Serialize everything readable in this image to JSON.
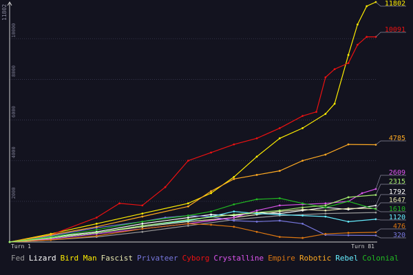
{
  "chart_data": {
    "type": "line",
    "title": "",
    "xlabel": "",
    "ylabel": "",
    "y_max_label": "11802",
    "xlim": [
      1,
      81
    ],
    "ylim": [
      0,
      11802
    ],
    "y_ticks": [
      2000,
      4000,
      6000,
      8000,
      10000
    ],
    "x_tick_labels": [
      "Turn 1",
      "Turn 81"
    ],
    "grid": "horizontal dotted",
    "legend_position": "bottom",
    "series": [
      {
        "name": "Fed",
        "color": "#9a9a9a",
        "final": "",
        "x": [
          1,
          10,
          20,
          30,
          40,
          50,
          60,
          70,
          81
        ],
        "y": [
          0,
          100,
          250,
          500,
          800,
          1100,
          1300,
          1400,
          1450
        ]
      },
      {
        "name": "Lizard",
        "color": "#ffffff",
        "final": "1792",
        "x": [
          1,
          10,
          20,
          30,
          40,
          45,
          50,
          55,
          60,
          65,
          70,
          75,
          81
        ],
        "y": [
          0,
          250,
          500,
          900,
          1200,
          1350,
          1300,
          1450,
          1400,
          1550,
          1700,
          1600,
          1792
        ]
      },
      {
        "name": "Bird Man",
        "color": "#ffee00",
        "final": "11802",
        "x": [
          1,
          10,
          20,
          30,
          40,
          45,
          50,
          55,
          60,
          65,
          70,
          72,
          75,
          77,
          79,
          81
        ],
        "y": [
          0,
          400,
          900,
          1400,
          1900,
          2400,
          3200,
          4200,
          5100,
          5600,
          6300,
          6800,
          9200,
          10700,
          11600,
          11802
        ]
      },
      {
        "name": "Fascist",
        "color": "#e8e8b0",
        "final": "1647",
        "x": [
          1,
          10,
          20,
          30,
          40,
          50,
          55,
          60,
          65,
          70,
          75,
          81
        ],
        "y": [
          0,
          200,
          450,
          750,
          1000,
          1200,
          1350,
          1500,
          1600,
          1550,
          1650,
          1647
        ]
      },
      {
        "name": "Privateer",
        "color": "#7777dd",
        "final": "320",
        "x": [
          1,
          10,
          20,
          30,
          35,
          40,
          45,
          50,
          55,
          60,
          65,
          70,
          75,
          81
        ],
        "y": [
          0,
          300,
          700,
          1000,
          1200,
          1300,
          1250,
          1050,
          1000,
          1050,
          900,
          350,
          330,
          320
        ]
      },
      {
        "name": "Cyborg",
        "color": "#ee1111",
        "final": "10091",
        "x": [
          1,
          10,
          20,
          25,
          30,
          35,
          40,
          45,
          50,
          55,
          60,
          65,
          68,
          70,
          72,
          75,
          77,
          79,
          81
        ],
        "y": [
          0,
          350,
          1200,
          1900,
          1800,
          2700,
          4000,
          4400,
          4800,
          5100,
          5600,
          6200,
          6400,
          8100,
          8500,
          8800,
          9700,
          10091,
          10091
        ]
      },
      {
        "name": "Crystalline",
        "color": "#dd55ee",
        "final": "2609",
        "x": [
          1,
          10,
          20,
          30,
          40,
          50,
          55,
          60,
          65,
          70,
          75,
          78,
          81
        ],
        "y": [
          0,
          150,
          400,
          650,
          900,
          1200,
          1550,
          1800,
          1850,
          1900,
          2000,
          2400,
          2609
        ]
      },
      {
        "name": "Empire",
        "color": "#dd7711",
        "final": "476",
        "x": [
          1,
          10,
          20,
          30,
          40,
          45,
          50,
          55,
          60,
          65,
          70,
          75,
          81
        ],
        "y": [
          0,
          100,
          300,
          650,
          900,
          850,
          750,
          500,
          250,
          200,
          400,
          450,
          476
        ]
      },
      {
        "name": "Robotic",
        "color": "#ffaa22",
        "final": "4785",
        "x": [
          1,
          10,
          20,
          30,
          40,
          45,
          50,
          55,
          60,
          65,
          70,
          75,
          81
        ],
        "y": [
          0,
          350,
          750,
          1250,
          1750,
          2500,
          3100,
          3300,
          3500,
          4000,
          4300,
          4800,
          4785
        ]
      },
      {
        "name": "Rebel",
        "color": "#66eeff",
        "final": "1120",
        "x": [
          1,
          10,
          20,
          30,
          40,
          45,
          50,
          55,
          60,
          65,
          70,
          75,
          81
        ],
        "y": [
          0,
          200,
          450,
          800,
          1050,
          1250,
          1500,
          1400,
          1350,
          1300,
          1250,
          1000,
          1120
        ]
      },
      {
        "name": "Colonial",
        "color": "#22bb22",
        "final": "1610",
        "x": [
          1,
          10,
          20,
          30,
          40,
          45,
          50,
          55,
          60,
          65,
          70,
          75,
          81
        ],
        "y": [
          0,
          250,
          600,
          1000,
          1300,
          1500,
          1850,
          2100,
          2150,
          1900,
          1700,
          2000,
          1610
        ]
      },
      {
        "name": "",
        "color": "#a6ee6e",
        "final": "2315",
        "x": [
          1,
          10,
          20,
          30,
          40,
          50,
          60,
          65,
          70,
          75,
          81
        ],
        "y": [
          0,
          200,
          450,
          800,
          1100,
          1350,
          1550,
          1700,
          1800,
          2200,
          2315
        ]
      }
    ]
  }
}
